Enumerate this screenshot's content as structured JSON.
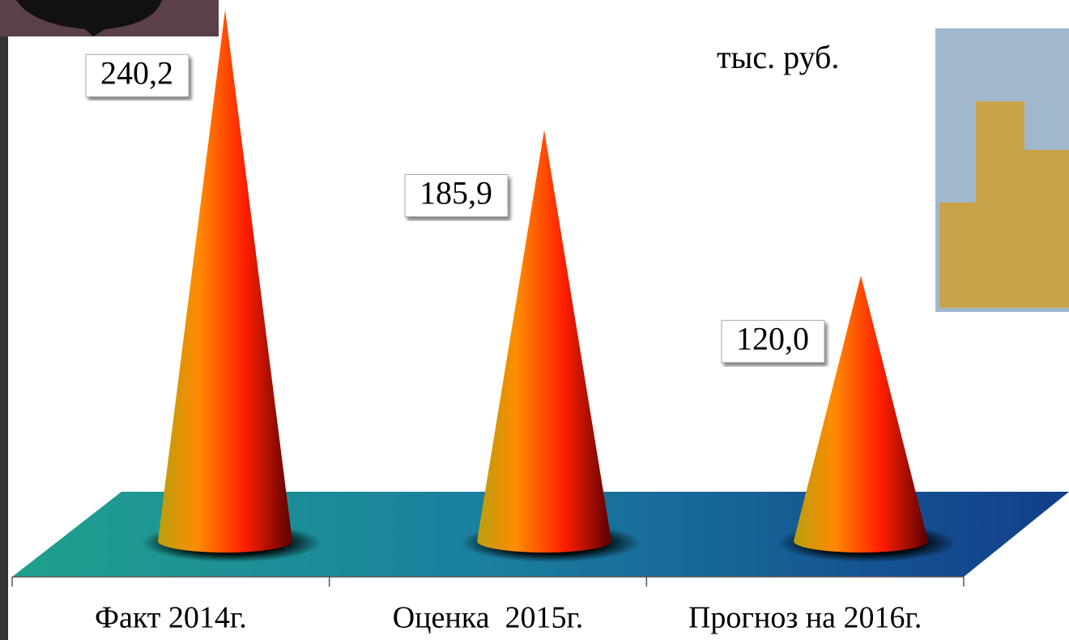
{
  "chart_data": {
    "type": "cone",
    "unit": "тыс. руб.",
    "categories": [
      "Факт 2014г.",
      "Оценка  2015г.",
      "Прогноз на 2016г."
    ],
    "values": [
      240.2,
      185.9,
      120.0
    ],
    "value_labels": [
      "240,2",
      "185,9",
      "120,0"
    ]
  }
}
